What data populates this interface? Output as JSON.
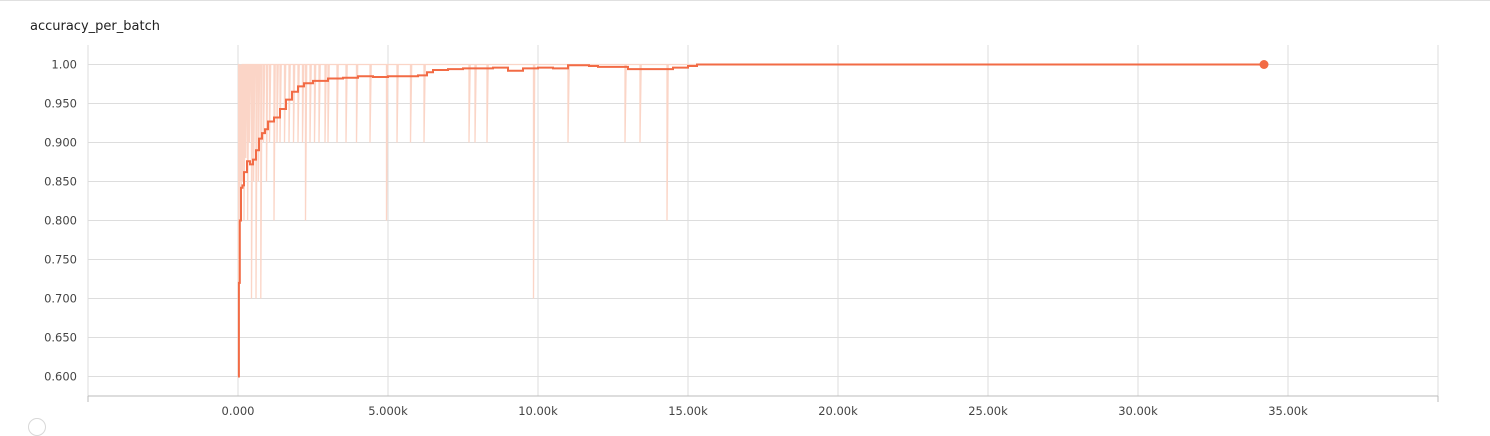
{
  "card": {
    "title": "accuracy_per_batch"
  },
  "chart_data": {
    "type": "line",
    "title": "accuracy_per_batch",
    "xlabel": "",
    "ylabel": "",
    "xlim": [
      -5000,
      40000
    ],
    "ylim": [
      0.575,
      1.025
    ],
    "grid": true,
    "x_ticks": [
      0,
      5000,
      10000,
      15000,
      20000,
      25000,
      30000,
      35000
    ],
    "x_tick_labels": [
      "0.000",
      "5.000k",
      "10.00k",
      "15.00k",
      "20.00k",
      "25.00k",
      "30.00k",
      "35.00k"
    ],
    "y_ticks": [
      0.6,
      0.65,
      0.7,
      0.75,
      0.8,
      0.85,
      0.9,
      0.95,
      1.0
    ],
    "y_tick_labels": [
      "0.600",
      "0.650",
      "0.700",
      "0.750",
      "0.800",
      "0.850",
      "0.900",
      "0.950",
      "1.00"
    ],
    "colors": {
      "smoothed": "#f26b45",
      "raw": "#fbd5c7",
      "grid": "#dddddd",
      "axis": "#bbbbbb"
    },
    "series": [
      {
        "role": "smoothed",
        "x": [
          0,
          30,
          60,
          100,
          150,
          200,
          300,
          400,
          500,
          600,
          700,
          800,
          900,
          1000,
          1200,
          1400,
          1600,
          1800,
          2000,
          2200,
          2500,
          3000,
          3500,
          4000,
          4500,
          5000,
          5500,
          6000,
          6300,
          6500,
          7000,
          7500,
          8000,
          8500,
          9000,
          9500,
          10000,
          10500,
          11000,
          11700,
          12000,
          12500,
          13000,
          13800,
          14500,
          15000,
          15300,
          20000,
          25000,
          30000,
          34200
        ],
        "y": [
          0.6,
          0.72,
          0.8,
          0.842,
          0.845,
          0.862,
          0.876,
          0.872,
          0.878,
          0.89,
          0.905,
          0.912,
          0.917,
          0.927,
          0.932,
          0.943,
          0.955,
          0.965,
          0.972,
          0.976,
          0.979,
          0.982,
          0.983,
          0.985,
          0.984,
          0.985,
          0.985,
          0.986,
          0.99,
          0.993,
          0.994,
          0.995,
          0.995,
          0.996,
          0.992,
          0.995,
          0.996,
          0.995,
          0.999,
          0.998,
          0.997,
          0.997,
          0.994,
          0.994,
          0.996,
          0.998,
          1.0,
          1.0,
          1.0,
          1.0,
          1.0
        ]
      },
      {
        "role": "raw",
        "dips_x": [
          20,
          60,
          100,
          150,
          200,
          260,
          320,
          380,
          450,
          520,
          600,
          680,
          760,
          850,
          950,
          1050,
          1200,
          1300,
          1400,
          1550,
          1700,
          1850,
          2000,
          2150,
          2250,
          2400,
          2550,
          2700,
          2900,
          3000,
          3300,
          3600,
          3950,
          4400,
          4950,
          5300,
          5750,
          6200,
          7700,
          7900,
          8300,
          9850,
          11000,
          12900,
          13400,
          14300
        ],
        "dips_y": [
          0.6,
          0.85,
          0.8,
          0.85,
          0.8,
          0.88,
          0.8,
          0.9,
          0.7,
          0.85,
          0.7,
          0.85,
          0.7,
          0.9,
          0.85,
          0.9,
          0.8,
          0.9,
          0.9,
          0.9,
          0.9,
          0.9,
          0.9,
          0.9,
          0.8,
          0.9,
          0.9,
          0.9,
          0.9,
          0.9,
          0.9,
          0.9,
          0.9,
          0.9,
          0.8,
          0.9,
          0.9,
          0.9,
          0.9,
          0.9,
          0.9,
          0.7,
          0.9,
          0.9,
          0.9,
          0.8
        ],
        "baseline": 1.0
      }
    ],
    "last_point": {
      "x": 34200,
      "y": 1.0
    }
  }
}
